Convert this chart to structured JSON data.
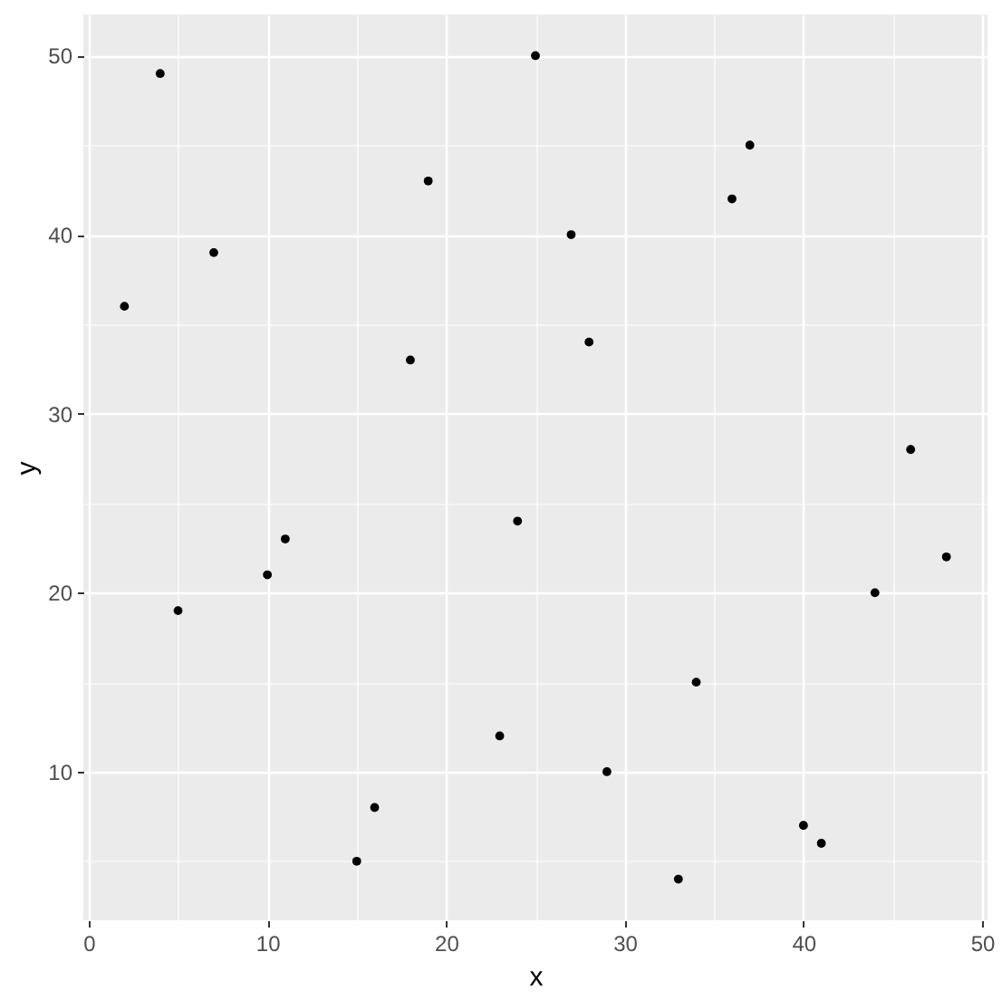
{
  "chart_data": {
    "type": "scatter",
    "xlabel": "x",
    "ylabel": "y",
    "x": [
      2,
      4,
      5,
      7,
      10,
      11,
      15,
      16,
      18,
      19,
      23,
      24,
      25,
      27,
      28,
      29,
      33,
      34,
      36,
      37,
      40,
      41,
      44,
      46,
      48
    ],
    "series": [
      {
        "color": "#000000",
        "values": [
          36,
          49,
          19,
          39,
          21,
          23,
          5,
          8,
          33,
          43,
          12,
          24,
          50,
          40,
          34,
          10,
          4,
          15,
          42,
          45,
          7,
          6,
          20,
          28,
          22
        ]
      }
    ],
    "xlim": [
      -0.3,
      50.3
    ],
    "ylim": [
      1.7,
      52.3
    ],
    "xticks": [
      0,
      10,
      20,
      30,
      40,
      50
    ],
    "yticks": [
      10,
      20,
      30,
      40,
      50
    ],
    "grid": true,
    "marker": "circle"
  }
}
